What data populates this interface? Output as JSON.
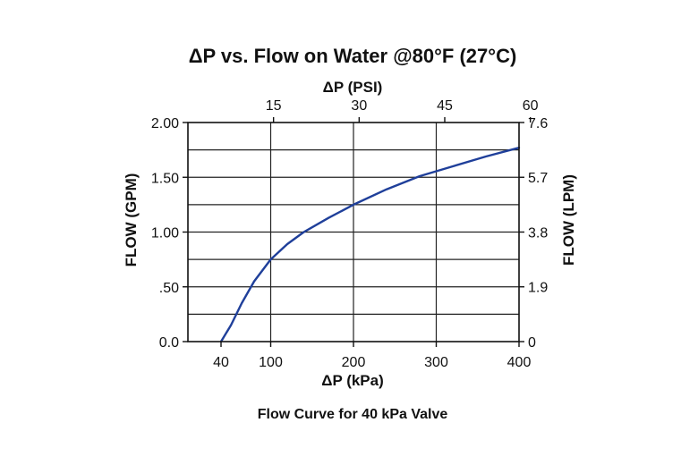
{
  "chart_data": {
    "type": "line",
    "title": "ΔP vs. Flow on Water @80°F (27°C)",
    "caption": "Flow Curve for 40 kPa Valve",
    "xlabel": "ΔP (kPa)",
    "x2label": "ΔP (PSI)",
    "ylabel": "FLOW (GPM)",
    "y2label": "FLOW (LPM)",
    "xlim": [
      0,
      400
    ],
    "ylim": [
      0,
      2.0
    ],
    "x_ticks": [
      {
        "value": 40,
        "label": "40"
      },
      {
        "value": 100,
        "label": "100"
      },
      {
        "value": 200,
        "label": "200"
      },
      {
        "value": 300,
        "label": "300"
      },
      {
        "value": 400,
        "label": "400"
      }
    ],
    "x_gridlines": [
      100,
      200,
      300
    ],
    "x2_ticks": [
      {
        "value": 15,
        "label": "15"
      },
      {
        "value": 30,
        "label": "30"
      },
      {
        "value": 45,
        "label": "45"
      },
      {
        "value": 60,
        "label": "60"
      }
    ],
    "x2_to_x_factor": 6.8948,
    "y_ticks": [
      {
        "value": 0,
        "label": "0.0"
      },
      {
        "value": 0.5,
        "label": ".50"
      },
      {
        "value": 1.0,
        "label": "1.00"
      },
      {
        "value": 1.5,
        "label": "1.50"
      },
      {
        "value": 2.0,
        "label": "2.00"
      }
    ],
    "y_gridlines": [
      0.25,
      0.5,
      0.75,
      1.0,
      1.25,
      1.5,
      1.75
    ],
    "y2_ticks": [
      {
        "value": 0,
        "label": "0"
      },
      {
        "value": 1.9,
        "label": "1.9"
      },
      {
        "value": 3.8,
        "label": "3.8"
      },
      {
        "value": 5.7,
        "label": "5.7"
      },
      {
        "value": 7.6,
        "label": "7.6"
      }
    ],
    "y2_to_y_factor": 0.26316,
    "grid": true,
    "line_color": "#1f3f9a",
    "series": [
      {
        "x": [
          40,
          52,
          65,
          80,
          100,
          120,
          140,
          170,
          200,
          240,
          280,
          320,
          360,
          400
        ],
        "values": [
          0.0,
          0.15,
          0.35,
          0.55,
          0.75,
          0.89,
          1.0,
          1.13,
          1.25,
          1.39,
          1.51,
          1.6,
          1.69,
          1.77
        ]
      }
    ]
  }
}
